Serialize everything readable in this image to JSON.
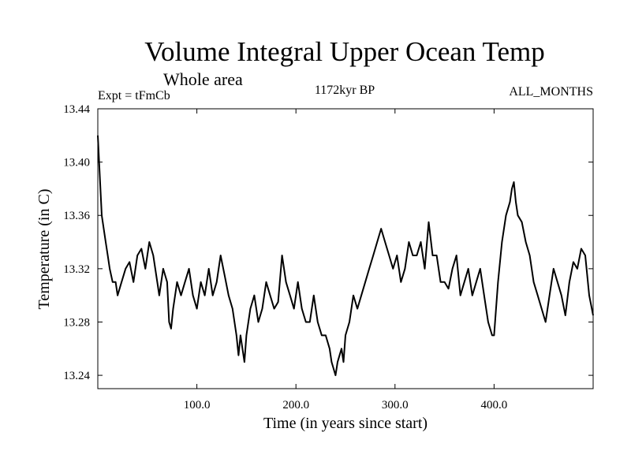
{
  "chart_data": {
    "type": "line",
    "title": "Volume Integral Upper Ocean Temp",
    "subtitle": "Whole area",
    "annotations": {
      "experiment": "Expt = tFmCb",
      "period": "1172kyr BP",
      "months": "ALL_MONTHS"
    },
    "xlabel": "Time (in years since start)",
    "ylabel": "Temperature (in C)",
    "xlim": [
      0,
      500
    ],
    "ylim": [
      13.23,
      13.44
    ],
    "xticks": [
      100,
      200,
      300,
      400
    ],
    "xtick_labels": [
      "100.0",
      "200.0",
      "300.0",
      "400.0"
    ],
    "yticks": [
      13.24,
      13.28,
      13.32,
      13.36,
      13.4,
      13.44
    ],
    "ytick_labels": [
      "13.24",
      "13.28",
      "13.32",
      "13.36",
      "13.40",
      "13.44"
    ],
    "grid": false,
    "legend": "none",
    "series": [
      {
        "name": "Temperature",
        "x": [
          0,
          2,
          4,
          6,
          8,
          10,
          12,
          15,
          18,
          20,
          24,
          28,
          32,
          36,
          40,
          44,
          48,
          52,
          56,
          60,
          62,
          66,
          70,
          72,
          74,
          76,
          80,
          84,
          88,
          92,
          96,
          100,
          104,
          108,
          112,
          116,
          120,
          124,
          128,
          132,
          136,
          140,
          142,
          144,
          148,
          150,
          154,
          158,
          162,
          166,
          170,
          174,
          178,
          182,
          186,
          190,
          194,
          198,
          202,
          206,
          210,
          214,
          218,
          222,
          226,
          230,
          234,
          236,
          238,
          240,
          242,
          244,
          246,
          248,
          250,
          254,
          258,
          262,
          266,
          270,
          274,
          278,
          282,
          286,
          290,
          294,
          298,
          302,
          306,
          310,
          314,
          318,
          322,
          326,
          330,
          334,
          338,
          342,
          346,
          350,
          354,
          358,
          362,
          366,
          370,
          374,
          378,
          382,
          386,
          390,
          394,
          398,
          400,
          404,
          408,
          412,
          416,
          418,
          420,
          422,
          424,
          428,
          432,
          436,
          440,
          444,
          448,
          452,
          456,
          460,
          464,
          468,
          472,
          476,
          480,
          484,
          488,
          492,
          496,
          500
        ],
        "y": [
          13.42,
          13.39,
          13.36,
          13.35,
          13.34,
          13.33,
          13.32,
          13.31,
          13.31,
          13.3,
          13.31,
          13.32,
          13.325,
          13.31,
          13.33,
          13.335,
          13.32,
          13.34,
          13.33,
          13.31,
          13.3,
          13.32,
          13.31,
          13.28,
          13.275,
          13.29,
          13.31,
          13.3,
          13.31,
          13.32,
          13.3,
          13.29,
          13.31,
          13.3,
          13.32,
          13.3,
          13.31,
          13.33,
          13.315,
          13.3,
          13.29,
          13.27,
          13.255,
          13.27,
          13.25,
          13.27,
          13.29,
          13.3,
          13.28,
          13.29,
          13.31,
          13.3,
          13.29,
          13.295,
          13.33,
          13.31,
          13.3,
          13.29,
          13.31,
          13.29,
          13.28,
          13.28,
          13.3,
          13.28,
          13.27,
          13.27,
          13.26,
          13.25,
          13.245,
          13.24,
          13.25,
          13.255,
          13.26,
          13.25,
          13.27,
          13.28,
          13.3,
          13.29,
          13.3,
          13.31,
          13.32,
          13.33,
          13.34,
          13.35,
          13.34,
          13.33,
          13.32,
          13.33,
          13.31,
          13.32,
          13.34,
          13.33,
          13.33,
          13.34,
          13.32,
          13.355,
          13.33,
          13.33,
          13.31,
          13.31,
          13.305,
          13.32,
          13.33,
          13.3,
          13.31,
          13.32,
          13.3,
          13.31,
          13.32,
          13.3,
          13.28,
          13.27,
          13.27,
          13.31,
          13.34,
          13.36,
          13.37,
          13.38,
          13.385,
          13.37,
          13.36,
          13.355,
          13.34,
          13.33,
          13.31,
          13.3,
          13.29,
          13.28,
          13.3,
          13.32,
          13.31,
          13.3,
          13.285,
          13.31,
          13.325,
          13.32,
          13.335,
          13.33,
          13.3,
          13.285
        ]
      }
    ]
  }
}
